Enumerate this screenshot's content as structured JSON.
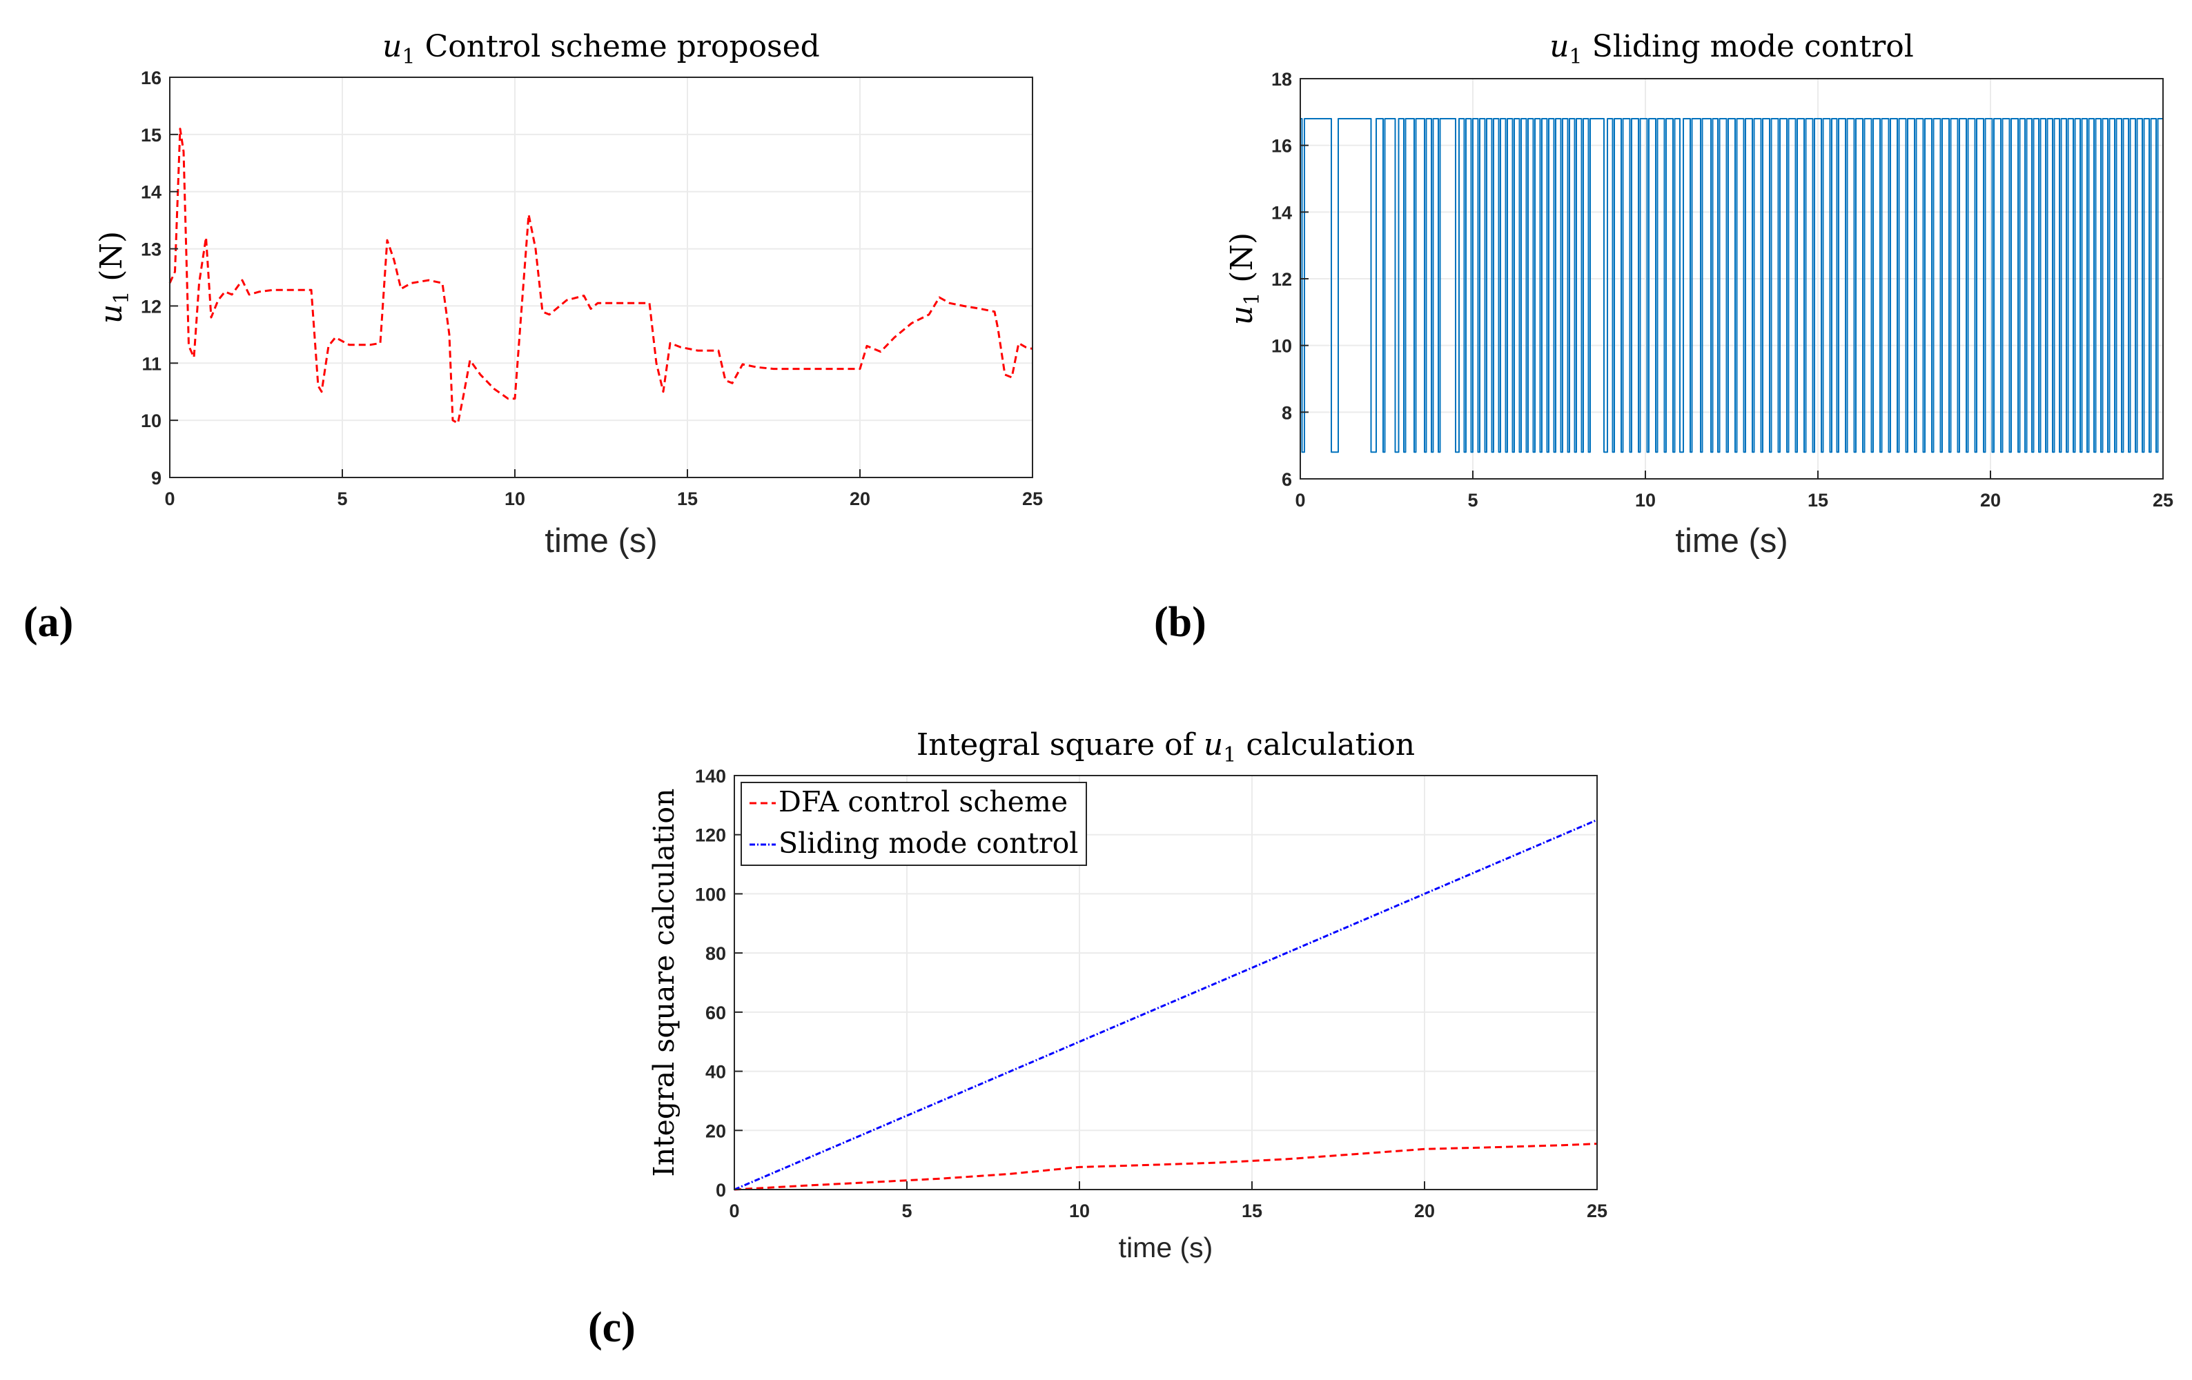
{
  "chart_data": [
    {
      "id": "a",
      "panel_label": "(a)",
      "type": "line",
      "title_var": "u",
      "title_sub": "1",
      "title_text": " Control scheme proposed",
      "ylabel_var": "u",
      "ylabel_sub": "1",
      "ylabel_unit": " (N)",
      "xlabel": "time (s)",
      "xlim": [
        0,
        25
      ],
      "ylim": [
        9,
        16
      ],
      "xticks": [
        0,
        5,
        10,
        15,
        20,
        25
      ],
      "yticks": [
        9,
        10,
        11,
        12,
        13,
        14,
        15,
        16
      ],
      "grid": true,
      "series": [
        {
          "name": "u1 control scheme proposed",
          "color": "#ff0000",
          "style": "dashed",
          "x": [
            0,
            0.15,
            0.3,
            0.4,
            0.55,
            0.7,
            0.85,
            1.05,
            1.2,
            1.4,
            1.6,
            1.8,
            2.1,
            2.3,
            2.6,
            3.0,
            3.5,
            4.1,
            4.3,
            4.4,
            4.6,
            4.8,
            5.2,
            5.8,
            6.1,
            6.3,
            6.5,
            6.7,
            7.0,
            7.5,
            7.9,
            8.1,
            8.2,
            8.35,
            8.5,
            8.7,
            9.0,
            9.4,
            9.8,
            10.0,
            10.2,
            10.4,
            10.6,
            10.8,
            11.0,
            11.5,
            12.0,
            12.2,
            12.4,
            12.8,
            13.4,
            13.9,
            14.1,
            14.3,
            14.5,
            14.8,
            15.3,
            15.9,
            16.1,
            16.3,
            16.6,
            17.0,
            17.5,
            18.5,
            20.0,
            20.2,
            20.4,
            20.6,
            21.0,
            21.5,
            22.0,
            22.3,
            22.6,
            23.0,
            23.5,
            23.9,
            24.0,
            24.2,
            24.4,
            24.6,
            24.8,
            25.0
          ],
          "y": [
            12.4,
            12.6,
            15.1,
            14.7,
            11.3,
            11.1,
            12.4,
            13.2,
            11.8,
            12.1,
            12.25,
            12.2,
            12.45,
            12.2,
            12.25,
            12.28,
            12.28,
            12.28,
            10.6,
            10.5,
            11.3,
            11.45,
            11.32,
            11.32,
            11.35,
            13.15,
            12.8,
            12.3,
            12.4,
            12.45,
            12.4,
            11.5,
            10.0,
            9.95,
            10.4,
            11.05,
            10.8,
            10.55,
            10.38,
            10.38,
            12.0,
            13.6,
            13.0,
            11.9,
            11.85,
            12.1,
            12.18,
            11.95,
            12.05,
            12.05,
            12.05,
            12.05,
            11.0,
            10.5,
            11.35,
            11.28,
            11.22,
            11.22,
            10.7,
            10.65,
            10.98,
            10.93,
            10.9,
            10.9,
            10.9,
            11.3,
            11.25,
            11.2,
            11.45,
            11.7,
            11.85,
            12.15,
            12.05,
            12.0,
            11.95,
            11.9,
            11.6,
            10.8,
            10.75,
            11.35,
            11.28,
            11.25
          ]
        }
      ]
    },
    {
      "id": "b",
      "panel_label": "(b)",
      "type": "line",
      "title_var": "u",
      "title_sub": "1",
      "title_text": " Sliding mode control",
      "ylabel_var": "u",
      "ylabel_sub": "1",
      "ylabel_unit": " (N)",
      "xlabel": "time (s)",
      "xlim": [
        0,
        25
      ],
      "ylim": [
        6,
        18
      ],
      "xticks": [
        0,
        5,
        10,
        15,
        20,
        25
      ],
      "yticks": [
        6,
        8,
        10,
        12,
        14,
        16,
        18
      ],
      "grid": true,
      "series": [
        {
          "name": "u1 sliding mode control",
          "color": "#0072bd",
          "style": "solid",
          "high": 16.8,
          "low": 6.8,
          "switch_times": [
            0.05,
            0.12,
            0.9,
            1.1,
            2.05,
            2.2,
            2.4,
            2.45,
            2.75,
            2.85,
            3.0,
            3.05,
            3.3,
            3.35,
            3.6,
            3.65,
            3.8,
            3.85,
            4.0,
            4.05,
            4.5,
            4.6,
            4.75,
            4.8,
            4.95,
            5.0,
            5.15,
            5.2,
            5.35,
            5.4,
            5.55,
            5.6,
            5.75,
            5.8,
            5.95,
            6.0,
            6.15,
            6.2,
            6.35,
            6.4,
            6.55,
            6.6,
            6.75,
            6.8,
            6.95,
            7.0,
            7.15,
            7.2,
            7.35,
            7.4,
            7.55,
            7.6,
            7.75,
            7.8,
            7.95,
            8.0,
            8.15,
            8.2,
            8.35,
            8.4,
            8.8,
            8.9,
            9.05,
            9.1,
            9.3,
            9.35,
            9.55,
            9.6,
            9.8,
            9.85,
            10.05,
            10.1,
            10.3,
            10.35,
            10.55,
            10.6,
            10.8,
            10.85,
            11.0,
            11.1,
            11.3,
            11.35,
            11.6,
            11.65,
            11.9,
            11.95,
            12.1,
            12.15,
            12.35,
            12.4,
            12.6,
            12.65,
            12.85,
            12.9,
            13.1,
            13.15,
            13.35,
            13.4,
            13.6,
            13.65,
            13.85,
            13.9,
            14.1,
            14.15,
            14.35,
            14.4,
            14.6,
            14.65,
            14.85,
            14.9,
            15.1,
            15.15,
            15.35,
            15.4,
            15.55,
            15.6,
            15.8,
            15.85,
            16.05,
            16.1,
            16.3,
            16.35,
            16.55,
            16.6,
            16.8,
            16.85,
            17.05,
            17.1,
            17.3,
            17.35,
            17.55,
            17.6,
            17.8,
            17.85,
            18.05,
            18.1,
            18.3,
            18.35,
            18.55,
            18.6,
            18.8,
            18.85,
            19.05,
            19.1,
            19.3,
            19.35,
            19.55,
            19.6,
            19.8,
            19.85,
            20.05,
            20.1,
            20.3,
            20.35,
            20.55,
            20.6,
            20.8,
            20.85,
            21.0,
            21.05,
            21.2,
            21.25,
            21.4,
            21.45,
            21.6,
            21.65,
            21.8,
            21.85,
            22.0,
            22.05,
            22.2,
            22.25,
            22.4,
            22.45,
            22.6,
            22.65,
            22.8,
            22.85,
            23.0,
            23.05,
            23.2,
            23.25,
            23.4,
            23.45,
            23.6,
            23.65,
            23.8,
            23.85,
            24.0,
            24.05,
            24.2,
            24.25,
            24.4,
            24.45,
            24.6,
            24.65,
            24.8,
            24.85,
            25.0
          ]
        }
      ]
    },
    {
      "id": "c",
      "panel_label": "(c)",
      "type": "line",
      "title_pre": "Integral square of ",
      "title_var": "u",
      "title_sub": "1",
      "title_post": " calculation",
      "ylabel": "Integral square calculation",
      "xlabel": "time (s)",
      "xlim": [
        0,
        25
      ],
      "ylim": [
        0,
        140
      ],
      "xticks": [
        0,
        5,
        10,
        15,
        20,
        25
      ],
      "yticks": [
        0,
        20,
        40,
        60,
        80,
        100,
        120,
        140
      ],
      "grid": true,
      "legend_position": "top-left",
      "series": [
        {
          "name": "DFA control scheme",
          "color": "#ff0000",
          "style": "dashed",
          "x": [
            0,
            2,
            4,
            6,
            8,
            10,
            12,
            14,
            16,
            18,
            20,
            22,
            24,
            25
          ],
          "y": [
            0,
            1.3,
            2.5,
            3.7,
            5.3,
            7.6,
            8.3,
            9.1,
            10.3,
            12.0,
            13.7,
            14.3,
            15.0,
            15.5
          ]
        },
        {
          "name": "Sliding mode control",
          "color": "#0000ff",
          "style": "dashdot",
          "x": [
            0,
            25
          ],
          "y": [
            0,
            125
          ]
        }
      ]
    }
  ]
}
